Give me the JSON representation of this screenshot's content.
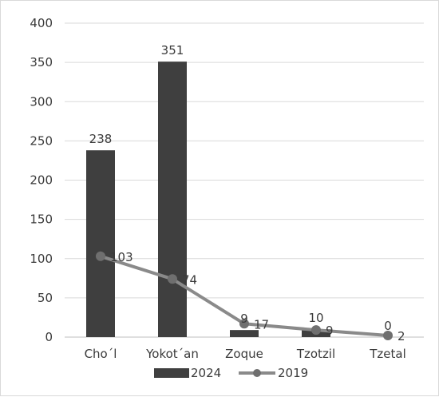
{
  "chart_data": {
    "type": "bar",
    "title": "",
    "xlabel": "",
    "ylabel": "",
    "categories": [
      "Cho´l",
      "Yokot´an",
      "Zoque",
      "Tzotzil",
      "Tzetal"
    ],
    "ylim": [
      0,
      400
    ],
    "yticks": [
      0,
      50,
      100,
      150,
      200,
      250,
      300,
      350,
      400
    ],
    "grid": true,
    "legend_position": "bottom",
    "series": [
      {
        "name": "2024",
        "type": "bar",
        "color": "#3f3f3f",
        "values": [
          238,
          351,
          9,
          10,
          0
        ],
        "labels": [
          "238",
          "351",
          "9",
          "10",
          "0"
        ]
      },
      {
        "name": "2019",
        "type": "line",
        "color": "#8a8a8a",
        "marker_color": "#6f6f6f",
        "values": [
          103,
          74,
          17,
          9,
          2
        ],
        "labels": [
          "103",
          "74",
          "17",
          "9",
          "2"
        ]
      }
    ]
  }
}
